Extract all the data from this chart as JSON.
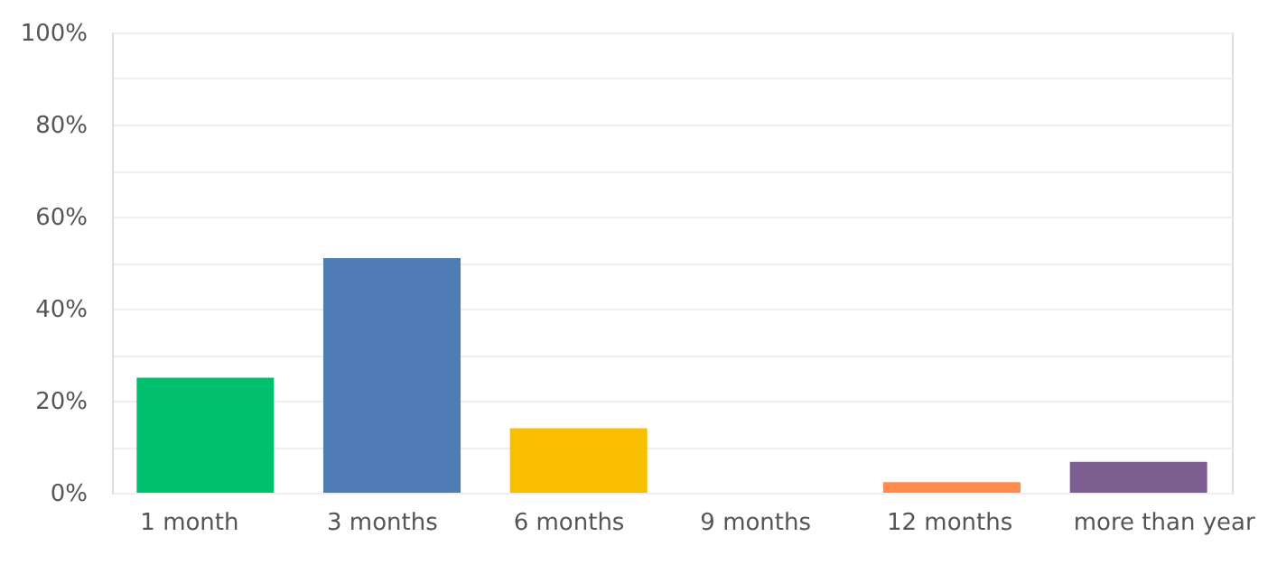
{
  "chart_data": {
    "type": "bar",
    "categories": [
      "1 month",
      "3 months",
      "6 months",
      "9 months",
      "12 months",
      "more than year"
    ],
    "values": [
      25,
      51,
      14,
      0,
      2.3,
      6.7
    ],
    "colors": [
      "#00bf6f",
      "#507cb6",
      "#f9be00",
      "#6bc8cd",
      "#ff8b4f",
      "#7d5e90"
    ],
    "ylim": [
      0,
      100
    ],
    "yticks": [
      {
        "value": 0,
        "label": "0%"
      },
      {
        "value": 10,
        "label": null
      },
      {
        "value": 20,
        "label": "20%"
      },
      {
        "value": 30,
        "label": null
      },
      {
        "value": 40,
        "label": "40%"
      },
      {
        "value": 50,
        "label": null
      },
      {
        "value": 60,
        "label": "60%"
      },
      {
        "value": 70,
        "label": null
      },
      {
        "value": 80,
        "label": "80%"
      },
      {
        "value": 90,
        "label": null
      },
      {
        "value": 100,
        "label": "100%"
      }
    ],
    "grid": "y"
  }
}
